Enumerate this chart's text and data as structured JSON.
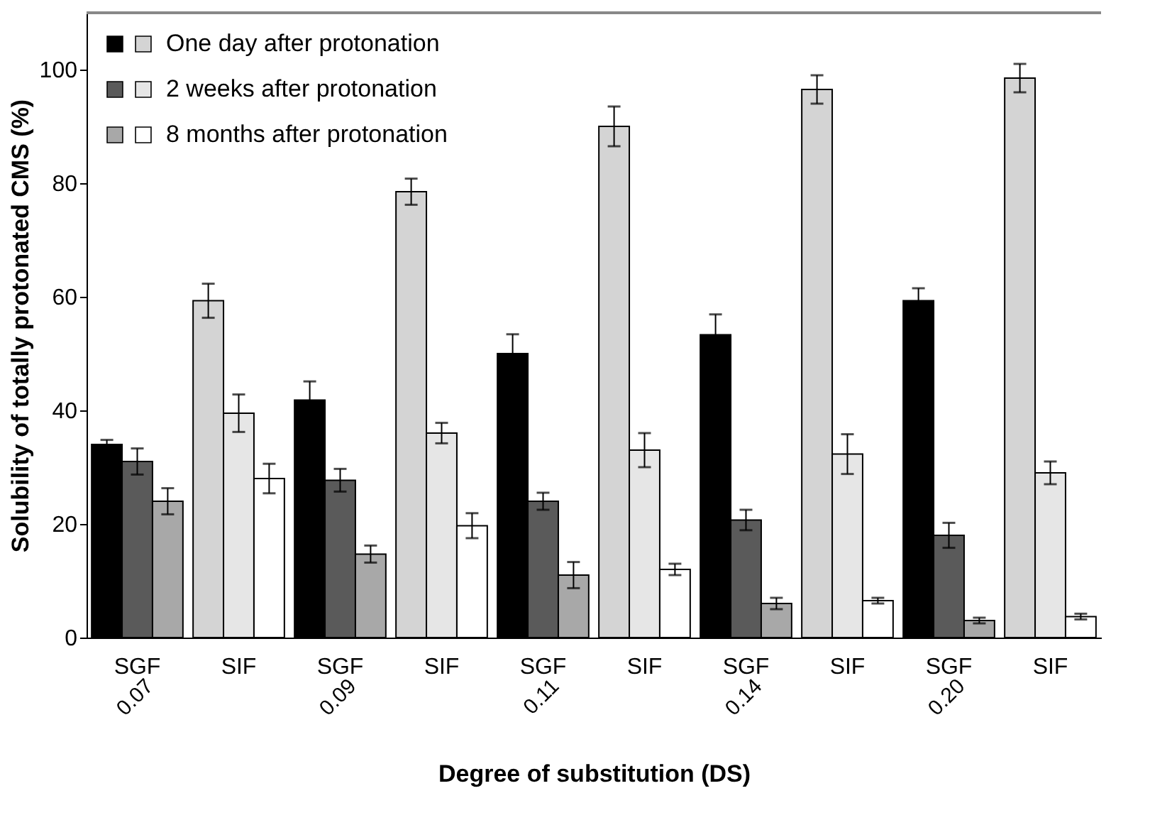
{
  "chart_data": {
    "type": "bar",
    "xlabel": "Degree of substitution (DS)",
    "ylabel": "Solubility of totally protonated CMS (%)",
    "categories": [
      "SGF",
      "SIF",
      "SGF",
      "SIF",
      "SGF",
      "SIF",
      "SGF",
      "SIF",
      "SGF",
      "SIF"
    ],
    "annotations": [
      "0.07",
      "0.09",
      "0.11",
      "0.14",
      "0.20"
    ],
    "series": [
      {
        "name": "One day after protonation",
        "colors": [
          "#000000",
          "#d4d4d4",
          "#000000",
          "#d4d4d4",
          "#000000",
          "#d4d4d4",
          "#000000",
          "#d4d4d4",
          "#000000",
          "#d4d4d4"
        ],
        "values": [
          34,
          59.3,
          41.8,
          78.5,
          50,
          90,
          53.3,
          96.5,
          59.3,
          98.5
        ],
        "errors": [
          0.8,
          3,
          3.3,
          2.3,
          3.4,
          3.5,
          3.6,
          2.5,
          2.2,
          2.5
        ]
      },
      {
        "name": "2 weeks after protonation",
        "colors": [
          "#5a5a5a",
          "#e6e6e6",
          "#5a5a5a",
          "#e6e6e6",
          "#5a5a5a",
          "#e6e6e6",
          "#5a5a5a",
          "#e6e6e6",
          "#5a5a5a",
          "#e6e6e6"
        ],
        "values": [
          31,
          39.5,
          27.7,
          36,
          24,
          33,
          20.7,
          32.3,
          18,
          29
        ],
        "errors": [
          2.3,
          3.3,
          2,
          1.8,
          1.5,
          3,
          1.8,
          3.5,
          2.2,
          2
        ]
      },
      {
        "name": "8 months after protonation",
        "colors": [
          "#a8a8a8",
          "#ffffff",
          "#a8a8a8",
          "#ffffff",
          "#a8a8a8",
          "#ffffff",
          "#a8a8a8",
          "#ffffff",
          "#a8a8a8",
          "#ffffff"
        ],
        "values": [
          24,
          28,
          14.7,
          19.7,
          11,
          12,
          6,
          6.5,
          3,
          3.7
        ],
        "errors": [
          2.3,
          2.6,
          1.5,
          2.2,
          2.3,
          1,
          1,
          0.5,
          0.5,
          0.5
        ]
      }
    ],
    "ylim": [
      0,
      110
    ],
    "yticks": [
      0,
      20,
      40,
      60,
      80,
      100
    ],
    "grid": false,
    "legend": "top left"
  }
}
